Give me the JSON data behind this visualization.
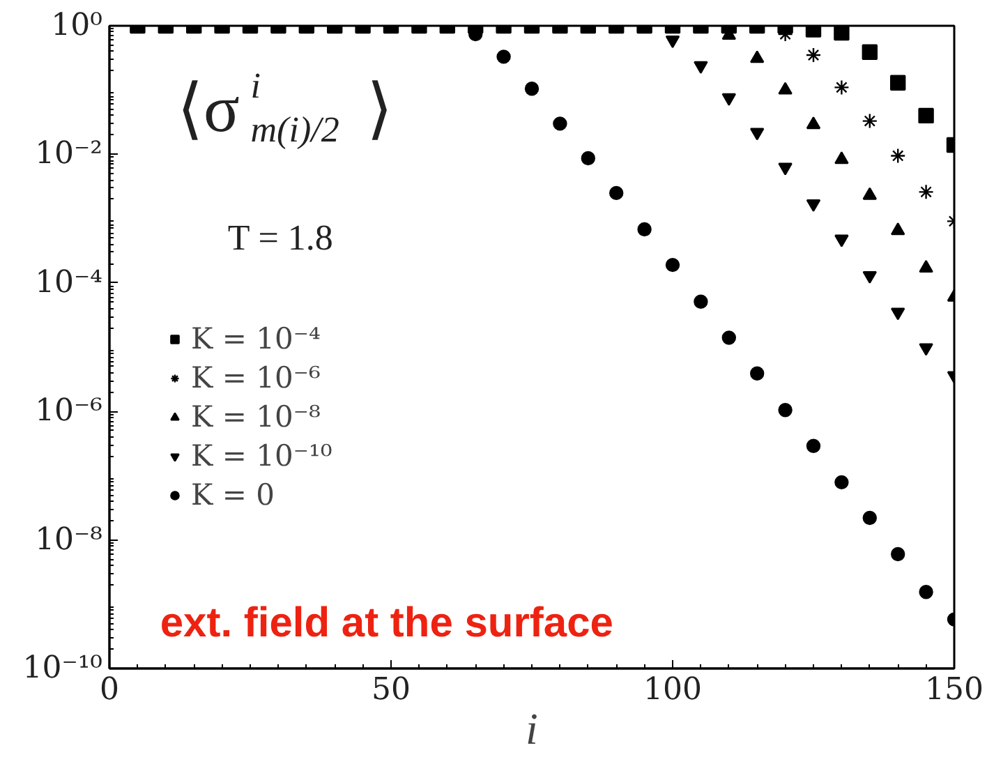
{
  "chart_data": {
    "type": "scatter",
    "xlabel": "i",
    "x": [
      5,
      10,
      15,
      20,
      25,
      30,
      35,
      40,
      45,
      50,
      55,
      60,
      65,
      70,
      75,
      80,
      85,
      90,
      95,
      100,
      105,
      110,
      115,
      120,
      125,
      130,
      135,
      140,
      145,
      150
    ],
    "series": [
      {
        "name": "K = 10⁻⁴",
        "color": "#000000",
        "marker": "square",
        "values": [
          1,
          1,
          1,
          1,
          1,
          1,
          1,
          1,
          1,
          1,
          1,
          1,
          1,
          1,
          1,
          1,
          1,
          1,
          1,
          1,
          1,
          1,
          1,
          1,
          0.87,
          0.78,
          0.39,
          0.13,
          0.04,
          0.014
        ]
      },
      {
        "name": "K = 10⁻⁶",
        "color": "#000000",
        "marker": "cross",
        "values": [
          null,
          null,
          null,
          null,
          null,
          null,
          null,
          null,
          null,
          null,
          null,
          null,
          null,
          null,
          null,
          null,
          null,
          null,
          null,
          null,
          null,
          null,
          null,
          0.74,
          0.35,
          0.11,
          0.033,
          0.0095,
          0.0026,
          0.00091
        ]
      },
      {
        "name": "K = 10⁻⁸",
        "color": "#000000",
        "marker": "triangle",
        "values": [
          null,
          null,
          null,
          null,
          null,
          null,
          null,
          null,
          null,
          null,
          null,
          null,
          null,
          null,
          null,
          null,
          null,
          null,
          null,
          null,
          null,
          0.71,
          0.31,
          0.1,
          0.029,
          0.0083,
          0.0023,
          0.00065,
          0.00017,
          6e-05
        ]
      },
      {
        "name": "K = 10⁻¹⁰",
        "color": "#000000",
        "values": [
          null,
          null,
          null,
          null,
          null,
          null,
          null,
          null,
          null,
          null,
          null,
          null,
          null,
          null,
          null,
          null,
          null,
          null,
          null,
          0.6,
          0.24,
          0.076,
          0.022,
          0.0063,
          0.0017,
          0.00048,
          0.00013,
          3.5e-05,
          9.8e-06,
          3.6e-06
        ]
      },
      {
        "name": "K = 0",
        "color": "#000000",
        "marker": "circle",
        "values": [
          null,
          null,
          null,
          null,
          null,
          null,
          null,
          null,
          null,
          null,
          null,
          null,
          0.74,
          0.33,
          0.105,
          0.03,
          0.0087,
          0.0025,
          0.00068,
          0.00019,
          5.1e-05,
          1.4e-05,
          3.9e-06,
          1.05e-06,
          2.9e-07,
          7.9e-08,
          2.2e-08,
          6e-09,
          1.55e-09,
          5.8e-10
        ]
      }
    ],
    "log": "y",
    "xlim": [
      0,
      150
    ],
    "xticks": [
      0,
      50,
      100,
      150
    ],
    "ylim": [
      1e-10,
      1
    ],
    "yticks": [
      {
        "value": 1e-10,
        "label": "10⁻¹⁰"
      },
      {
        "value": 1e-08,
        "label": "10⁻⁸"
      },
      {
        "value": 1e-06,
        "label": "10⁻⁶"
      },
      {
        "value": 0.0001,
        "label": "10⁻⁴"
      },
      {
        "value": 0.01,
        "label": "10⁻²"
      },
      {
        "value": 1,
        "label": "10⁰"
      }
    ],
    "legend": "left",
    "grid": false,
    "annotations": [
      "⟨σ$^{i}$$_{m(i)/2}$⟩",
      "T = 1.8",
      "ext. field at the surface"
    ]
  }
}
